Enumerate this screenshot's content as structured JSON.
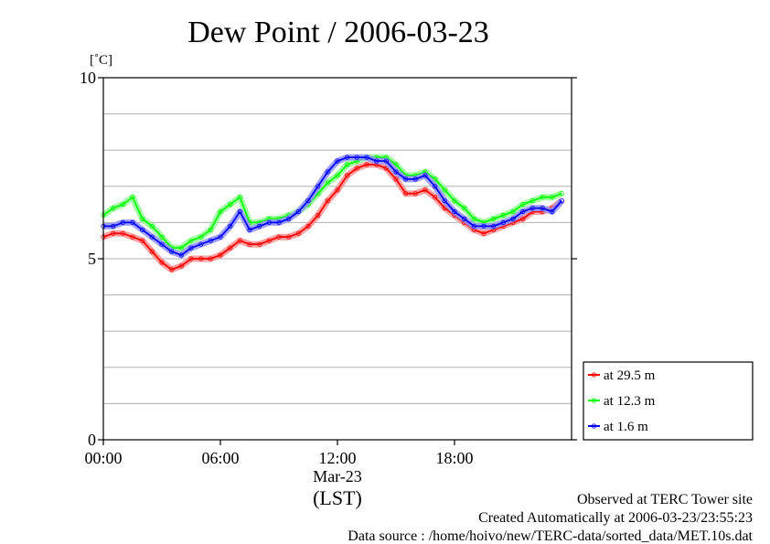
{
  "chart_data": {
    "type": "line",
    "title": "Dew Point / 2006-03-23",
    "ylabel": "[˚C]",
    "xlabel": "(LST)",
    "x_date_label": "Mar-23",
    "ylim": [
      0,
      10
    ],
    "xlim": [
      0,
      24
    ],
    "y_ticks": [
      {
        "value": 0,
        "label": "0"
      },
      {
        "value": 5,
        "label": "5"
      },
      {
        "value": 10,
        "label": "10"
      }
    ],
    "y_gridlines": [
      1,
      2,
      3,
      4,
      5,
      6,
      7,
      8,
      9
    ],
    "x_ticks": [
      {
        "value": 0,
        "label": "00:00"
      },
      {
        "value": 6,
        "label": "06:00"
      },
      {
        "value": 12,
        "label": "12:00"
      },
      {
        "value": 18,
        "label": "18:00"
      }
    ],
    "grid": "horizontal",
    "legend_position": "right-bottom",
    "series": [
      {
        "name": "at 29.5 m",
        "color": "#ff0000",
        "x": [
          0,
          0.5,
          1,
          1.5,
          2,
          2.5,
          3,
          3.5,
          4,
          4.5,
          5,
          5.5,
          6,
          6.5,
          7,
          7.5,
          8,
          8.5,
          9,
          9.5,
          10,
          10.5,
          11,
          11.5,
          12,
          12.5,
          13,
          13.5,
          14,
          14.5,
          15,
          15.5,
          16,
          16.5,
          17,
          17.5,
          18,
          18.5,
          19,
          19.5,
          20,
          20.5,
          21,
          21.5,
          22,
          22.5,
          23,
          23.5
        ],
        "values": [
          5.6,
          5.7,
          5.7,
          5.6,
          5.5,
          5.2,
          4.9,
          4.7,
          4.8,
          5.0,
          5.0,
          5.0,
          5.1,
          5.3,
          5.5,
          5.4,
          5.4,
          5.5,
          5.6,
          5.6,
          5.7,
          5.9,
          6.2,
          6.6,
          6.9,
          7.3,
          7.5,
          7.6,
          7.6,
          7.5,
          7.2,
          6.8,
          6.8,
          6.9,
          6.7,
          6.4,
          6.2,
          6.0,
          5.8,
          5.7,
          5.8,
          5.9,
          6.0,
          6.1,
          6.3,
          6.3,
          6.4,
          6.6
        ]
      },
      {
        "name": "at 12.3 m",
        "color": "#00ff00",
        "x": [
          0,
          0.5,
          1,
          1.5,
          2,
          2.5,
          3,
          3.5,
          4,
          4.5,
          5,
          5.5,
          6,
          6.5,
          7,
          7.5,
          8,
          8.5,
          9,
          9.5,
          10,
          10.5,
          11,
          11.5,
          12,
          12.5,
          13,
          13.5,
          14,
          14.5,
          15,
          15.5,
          16,
          16.5,
          17,
          17.5,
          18,
          18.5,
          19,
          19.5,
          20,
          20.5,
          21,
          21.5,
          22,
          22.5,
          23,
          23.5
        ],
        "values": [
          6.2,
          6.4,
          6.5,
          6.7,
          6.1,
          5.9,
          5.6,
          5.3,
          5.3,
          5.5,
          5.6,
          5.8,
          6.3,
          6.5,
          6.7,
          6.0,
          6.0,
          6.1,
          6.1,
          6.2,
          6.3,
          6.5,
          6.8,
          7.1,
          7.3,
          7.6,
          7.7,
          7.8,
          7.8,
          7.8,
          7.6,
          7.3,
          7.3,
          7.4,
          7.2,
          6.9,
          6.6,
          6.4,
          6.1,
          6.0,
          6.1,
          6.2,
          6.3,
          6.5,
          6.6,
          6.7,
          6.7,
          6.8
        ]
      },
      {
        "name": "at 1.6 m",
        "color": "#0000ff",
        "x": [
          0,
          0.5,
          1,
          1.5,
          2,
          2.5,
          3,
          3.5,
          4,
          4.5,
          5,
          5.5,
          6,
          6.5,
          7,
          7.5,
          8,
          8.5,
          9,
          9.5,
          10,
          10.5,
          11,
          11.5,
          12,
          12.5,
          13,
          13.5,
          14,
          14.5,
          15,
          15.5,
          16,
          16.5,
          17,
          17.5,
          18,
          18.5,
          19,
          19.5,
          20,
          20.5,
          21,
          21.5,
          22,
          22.5,
          23,
          23.5
        ],
        "values": [
          5.9,
          5.9,
          6.0,
          6.0,
          5.8,
          5.6,
          5.4,
          5.2,
          5.1,
          5.3,
          5.4,
          5.5,
          5.6,
          5.9,
          6.3,
          5.8,
          5.9,
          6.0,
          6.0,
          6.1,
          6.3,
          6.6,
          7.0,
          7.4,
          7.7,
          7.8,
          7.8,
          7.8,
          7.7,
          7.7,
          7.4,
          7.2,
          7.2,
          7.3,
          7.0,
          6.6,
          6.3,
          6.1,
          5.9,
          5.9,
          5.9,
          6.0,
          6.1,
          6.3,
          6.4,
          6.4,
          6.3,
          6.6
        ]
      }
    ]
  },
  "footer": {
    "line1": "Observed at TERC Tower site",
    "line2": "Created Automatically at 2006-03-23/23:55:23",
    "line3": "Data source : /home/hoivo/new/TERC-data/sorted_data/MET.10s.dat"
  }
}
